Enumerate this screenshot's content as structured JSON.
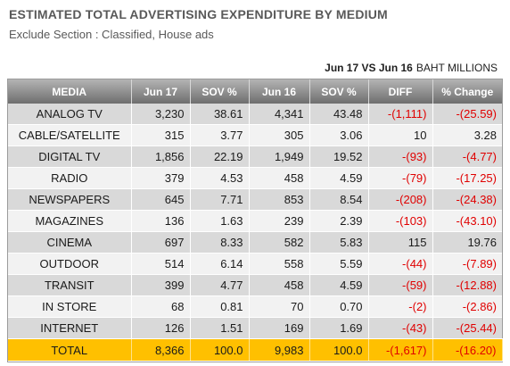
{
  "title": "ESTIMATED TOTAL ADVERTISING EXPENDITURE BY MEDIUM",
  "subtitle": "Exclude Section : Classified, House ads",
  "period": "Jun 17 VS Jun 16",
  "unit": "BAHT MILLIONS",
  "columns": [
    "MEDIA",
    "Jun 17",
    "SOV %",
    "Jun 16",
    "SOV %",
    "DIFF",
    "% Change"
  ],
  "rows": [
    {
      "media": "ANALOG  TV",
      "jun17": "3,230",
      "sov17": "38.61",
      "jun16": "4,341",
      "sov16": "43.48",
      "diff": "-(1,111)",
      "change": "-(25.59)",
      "negative": true
    },
    {
      "media": "CABLE/SATELLITE",
      "jun17": "315",
      "sov17": "3.77",
      "jun16": "305",
      "sov16": "3.06",
      "diff": "10",
      "change": "3.28",
      "negative": false
    },
    {
      "media": "DIGITAL TV",
      "jun17": "1,856",
      "sov17": "22.19",
      "jun16": "1,949",
      "sov16": "19.52",
      "diff": "-(93)",
      "change": "-(4.77)",
      "negative": true
    },
    {
      "media": "RADIO",
      "jun17": "379",
      "sov17": "4.53",
      "jun16": "458",
      "sov16": "4.59",
      "diff": "-(79)",
      "change": "-(17.25)",
      "negative": true
    },
    {
      "media": "NEWSPAPERS",
      "jun17": "645",
      "sov17": "7.71",
      "jun16": "853",
      "sov16": "8.54",
      "diff": "-(208)",
      "change": "-(24.38)",
      "negative": true
    },
    {
      "media": "MAGAZINES",
      "jun17": "136",
      "sov17": "1.63",
      "jun16": "239",
      "sov16": "2.39",
      "diff": "-(103)",
      "change": "-(43.10)",
      "negative": true
    },
    {
      "media": "CINEMA",
      "jun17": "697",
      "sov17": "8.33",
      "jun16": "582",
      "sov16": "5.83",
      "diff": "115",
      "change": "19.76",
      "negative": false
    },
    {
      "media": "OUTDOOR",
      "jun17": "514",
      "sov17": "6.14",
      "jun16": "558",
      "sov16": "5.59",
      "diff": "-(44)",
      "change": "-(7.89)",
      "negative": true
    },
    {
      "media": "TRANSIT",
      "jun17": "399",
      "sov17": "4.77",
      "jun16": "458",
      "sov16": "4.59",
      "diff": "-(59)",
      "change": "-(12.88)",
      "negative": true
    },
    {
      "media": "IN STORE",
      "jun17": "68",
      "sov17": "0.81",
      "jun16": "70",
      "sov16": "0.70",
      "diff": "-(2)",
      "change": "-(2.86)",
      "negative": true
    },
    {
      "media": "INTERNET",
      "jun17": "126",
      "sov17": "1.51",
      "jun16": "169",
      "sov16": "1.69",
      "diff": "-(43)",
      "change": "-(25.44)",
      "negative": true
    }
  ],
  "total": {
    "media": "TOTAL",
    "jun17": "8,366",
    "sov17": "100.0",
    "jun16": "9,983",
    "sov16": "100.0",
    "diff": "-(1,617)",
    "change": "-(16.20)",
    "negative": true
  },
  "colors": {
    "header_gradient_top": "#b4b4b4",
    "header_gradient_bottom": "#6e6e6e",
    "row_odd": "#d9d9d9",
    "row_even": "#f2f2f2",
    "total": "#ffc000",
    "negative": "#e00000"
  }
}
